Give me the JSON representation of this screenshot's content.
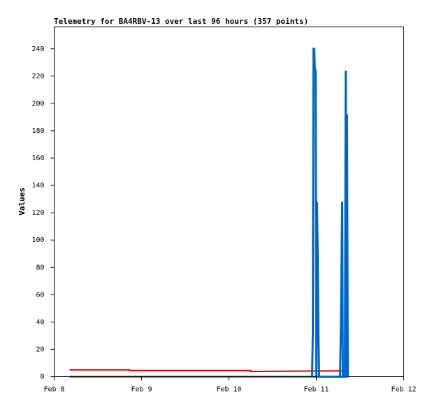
{
  "chart_data": {
    "type": "line",
    "title": "Telemetry for BA4RBV-13 over last 96 hours (357 points)",
    "y_label": "Values",
    "xlim": [
      8,
      12
    ],
    "xticks": [
      {
        "value": 8,
        "label": "Feb 8"
      },
      {
        "value": 9,
        "label": "Feb 9"
      },
      {
        "value": 10,
        "label": "Feb 10"
      },
      {
        "value": 11,
        "label": "Feb 11"
      },
      {
        "value": 12,
        "label": "Feb 12"
      }
    ],
    "ylim": [
      0,
      256
    ],
    "yticks": [
      0,
      20,
      40,
      60,
      80,
      100,
      120,
      140,
      160,
      180,
      200,
      220,
      240
    ],
    "series": [
      {
        "color": "#000000",
        "x": [
          8.176,
          11.368
        ],
        "values": [
          0,
          0
        ]
      },
      {
        "color": "#dd0000",
        "x": [
          8.176,
          8.864,
          8.864,
          10.248,
          10.248,
          11.368
        ],
        "values": [
          5,
          5,
          4.5,
          4.5,
          3.8,
          4.3
        ]
      },
      {
        "color": "#0066cc",
        "x": [
          10.952,
          10.96,
          10.968,
          10.976,
          10.984,
          10.992,
          11.0,
          11.008,
          11.016,
          11.024,
          11.032,
          11.272,
          11.28,
          11.288,
          11.296,
          11.304,
          11.328,
          11.336,
          11.344,
          11.352,
          11.36
        ],
        "values": [
          0,
          32,
          240,
          240,
          224,
          224,
          0,
          128,
          88,
          32,
          0,
          0,
          32,
          80,
          128,
          0,
          0,
          224,
          0,
          192,
          0
        ]
      }
    ]
  }
}
